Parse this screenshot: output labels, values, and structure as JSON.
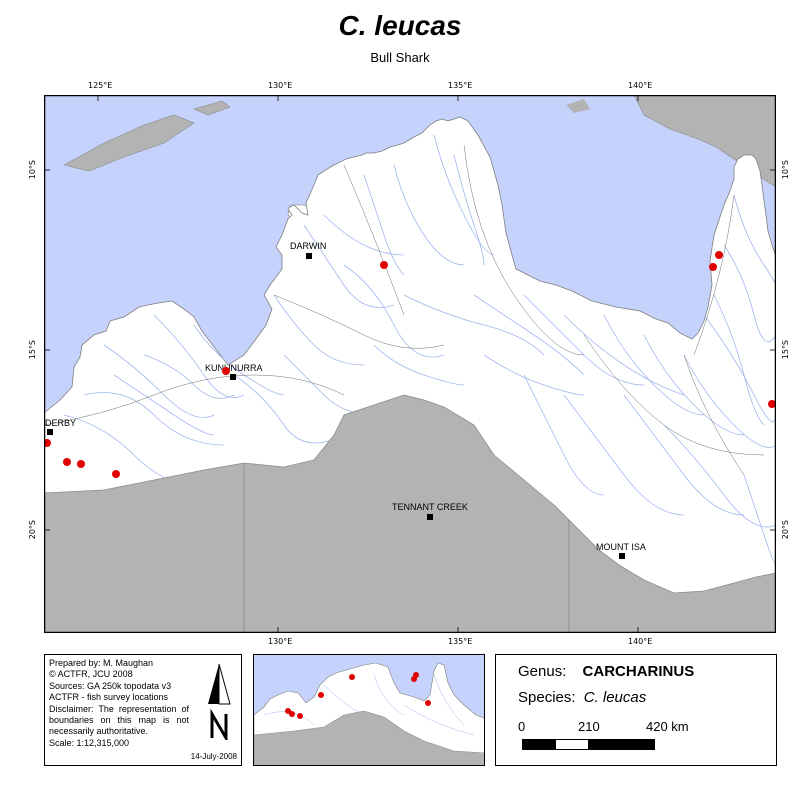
{
  "title": "C. leucas",
  "subtitle": "Bull Shark",
  "map": {
    "longitude_ticks": [
      "125°E",
      "130°E",
      "135°E",
      "140°E"
    ],
    "latitude_ticks": [
      "10°S",
      "15°S",
      "20°S"
    ],
    "towns": [
      "DARWIN",
      "KUNUNURRA",
      "DERBY",
      "TENNANT CREEK",
      "MOUNT ISA"
    ],
    "occurrence_marker_color": "#e00000",
    "colors": {
      "sea": "#c5d2fb",
      "catchment": "#ffffff",
      "inland": "#b3b3b3",
      "river": "#9fb6ee"
    }
  },
  "info": {
    "lines": [
      "Prepared by: M. Maughan",
      "© ACTFR, JCU 2008",
      "Sources: GA 250k topodata v3",
      "ACTFR - fish survey locations",
      "Disclaimer: The representation of boundaries on this map is not necessarily authoritative.",
      "Scale: 1:12,315,000"
    ],
    "date": "14-July-2008"
  },
  "legend": {
    "genus_label": "Genus:",
    "genus_value": "CARCHARINUS",
    "species_label": "Species:",
    "species_value": "C. leucas",
    "scale_labels": [
      "0",
      "210",
      "420 km"
    ]
  }
}
